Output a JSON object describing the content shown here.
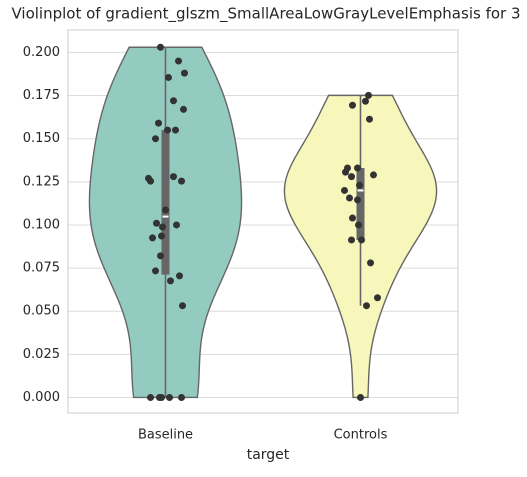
{
  "chart_data": {
    "type": "violin",
    "title": "Violinplot of gradient_glszm_SmallAreaLowGrayLevelEmphasis for 3",
    "x_label": "target",
    "categories": [
      "Baseline",
      "Controls"
    ],
    "series": [
      {
        "name": "Baseline",
        "color": "#93cbc0",
        "values": [
          0.203,
          0.1855,
          0.195,
          0.188,
          0.172,
          0.167,
          0.159,
          0.155,
          0.155,
          0.15,
          0.127,
          0.1254,
          0.128,
          0.1254,
          0.1087,
          0.101,
          0.1,
          0.0988,
          0.0936,
          0.0925,
          0.0821,
          0.0734,
          0.0705,
          0.0676,
          0.0532,
          0,
          0,
          0,
          0,
          0
        ]
      },
      {
        "name": "Controls",
        "color": "#f7f7bb",
        "values": [
          0.1751,
          0.1717,
          0.1694,
          0.1613,
          0.133,
          0.133,
          0.1306,
          0.128,
          0.129,
          0.12,
          0.123,
          0.1156,
          0.1145,
          0.104,
          0.1,
          0.0913,
          0.0913,
          0.078,
          0.0578,
          0.0532,
          0
        ]
      }
    ],
    "ylim": [
      -0.009,
      0.213
    ],
    "yticks": [
      {
        "value": 0,
        "label": "0.000"
      },
      {
        "value": 0.025,
        "label": "0.025"
      },
      {
        "value": 0.05,
        "label": "0.050"
      },
      {
        "value": 0.075,
        "label": "0.075"
      },
      {
        "value": 0.1,
        "label": "0.100"
      },
      {
        "value": 0.125,
        "label": "0.125"
      },
      {
        "value": 0.15,
        "label": "0.150"
      },
      {
        "value": 0.175,
        "label": "0.175"
      },
      {
        "value": 0.2,
        "label": "0.200"
      }
    ],
    "grid": true
  }
}
